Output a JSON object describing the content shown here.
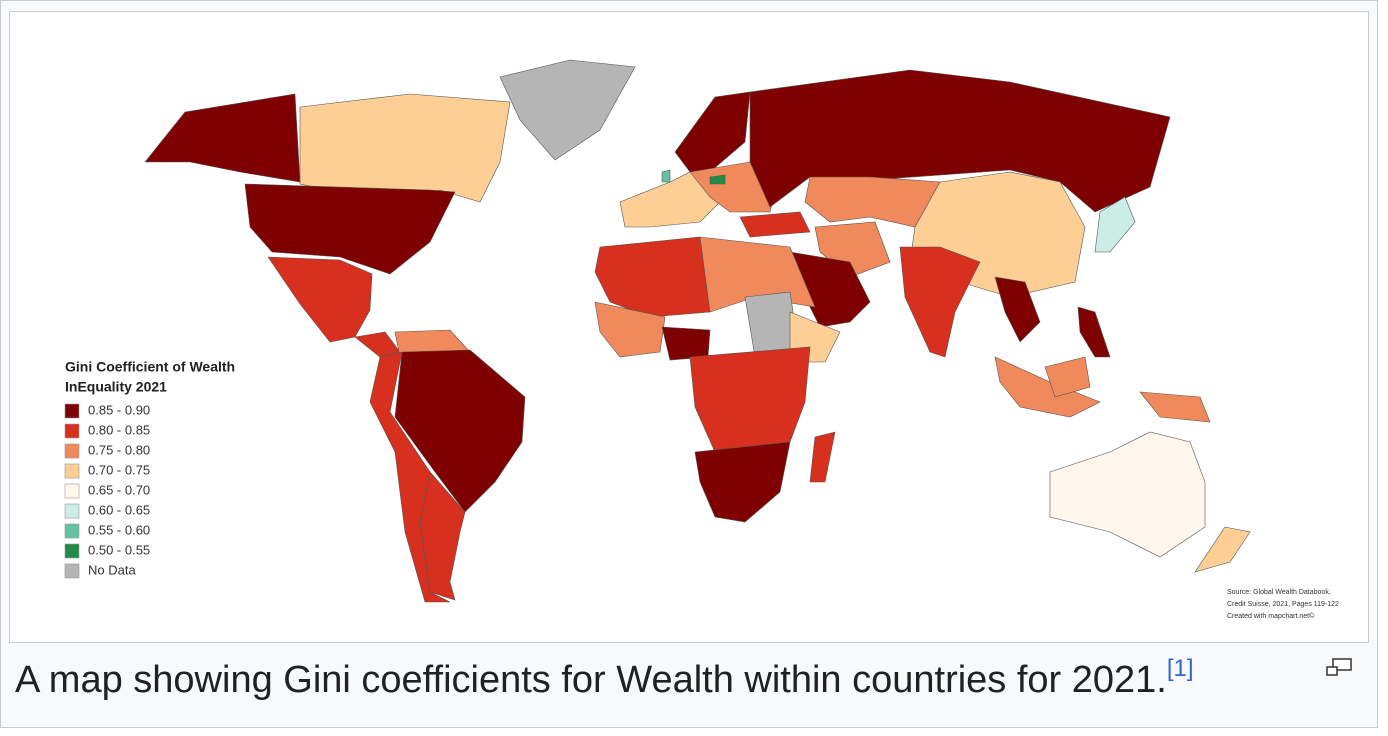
{
  "figure": {
    "legend": {
      "title_lines": [
        "Gini Coefficient of Wealth",
        "InEquality 2021"
      ],
      "items": [
        {
          "label": "0.85 - 0.90",
          "color": "#7f0000"
        },
        {
          "label": "0.80 - 0.85",
          "color": "#d7301f"
        },
        {
          "label": "0.75 - 0.80",
          "color": "#f08a5d"
        },
        {
          "label": "0.70 - 0.75",
          "color": "#fdcf95"
        },
        {
          "label": "0.65 - 0.70",
          "color": "#fff6ec"
        },
        {
          "label": "0.60 - 0.65",
          "color": "#ccece6"
        },
        {
          "label": "0.55 - 0.60",
          "color": "#66c2a4"
        },
        {
          "label": "0.50 - 0.55",
          "color": "#238b45"
        },
        {
          "label": "No Data",
          "color": "#b5b5b5"
        }
      ]
    },
    "source_lines": [
      "Source: Global Wealth Databook,",
      "Credit Suisse, 2021, Pages 119-122",
      "Created with mapchart.net©"
    ],
    "caption": "A map showing Gini coefficients for Wealth within countries for 2021.",
    "reference": "[1]"
  }
}
